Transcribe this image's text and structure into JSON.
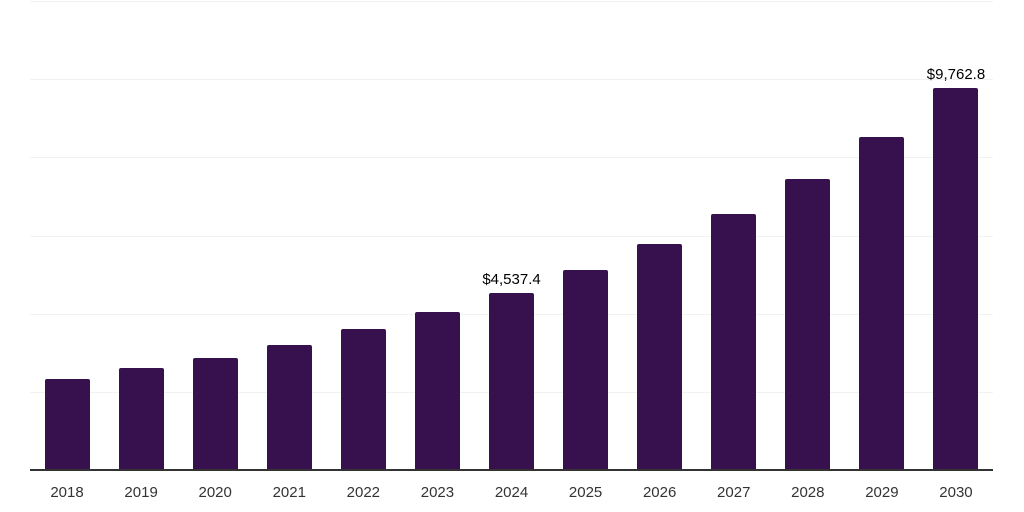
{
  "chart_data": {
    "type": "bar",
    "title": "",
    "xlabel": "",
    "ylabel": "",
    "categories": [
      "2018",
      "2019",
      "2020",
      "2021",
      "2022",
      "2023",
      "2024",
      "2025",
      "2026",
      "2027",
      "2028",
      "2029",
      "2030"
    ],
    "values": [
      2330,
      2600,
      2870,
      3200,
      3610,
      4040,
      4537.4,
      5120,
      5780,
      6550,
      7440,
      8510,
      9762.8
    ],
    "data_labels": {
      "6": "$4,537.4",
      "12": "$9,762.8"
    },
    "ylim": [
      0,
      12000
    ],
    "gridline_step": 2000,
    "grid": true,
    "legend": "none",
    "colors": {
      "bar_fill": "#36114E",
      "gridline": "#f2f2f2",
      "axis_line": "#333333",
      "value_label_text": "#000000",
      "tick_label_text": "#333333",
      "background": "#ffffff"
    }
  }
}
